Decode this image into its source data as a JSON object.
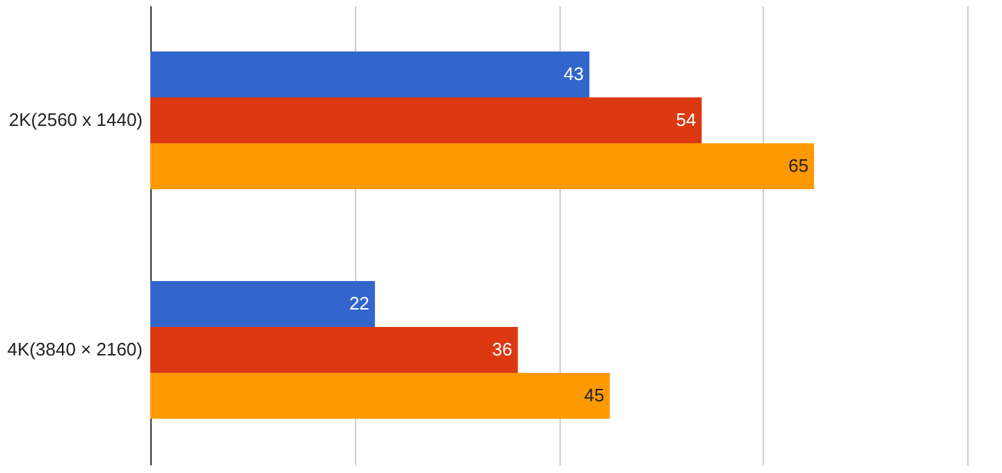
{
  "chart_data": {
    "type": "bar",
    "orientation": "horizontal",
    "categories": [
      "2K(2560 x 1440)",
      "4K(3840 × 2160)"
    ],
    "series": [
      {
        "color": "#3366cc",
        "values": [
          43,
          22
        ]
      },
      {
        "color": "#dc3912",
        "values": [
          54,
          36
        ]
      },
      {
        "color": "#ff9900",
        "values": [
          65,
          45
        ]
      }
    ],
    "xlim": [
      0,
      80
    ],
    "xticks": [
      {
        "value": 0,
        "label": null
      },
      {
        "value": 20,
        "label": null
      },
      {
        "value": 40,
        "label": null
      },
      {
        "value": 60,
        "label": null
      },
      {
        "value": 80,
        "label": null
      }
    ],
    "tick_labels": "y",
    "grid": "x",
    "data_labels": true
  }
}
